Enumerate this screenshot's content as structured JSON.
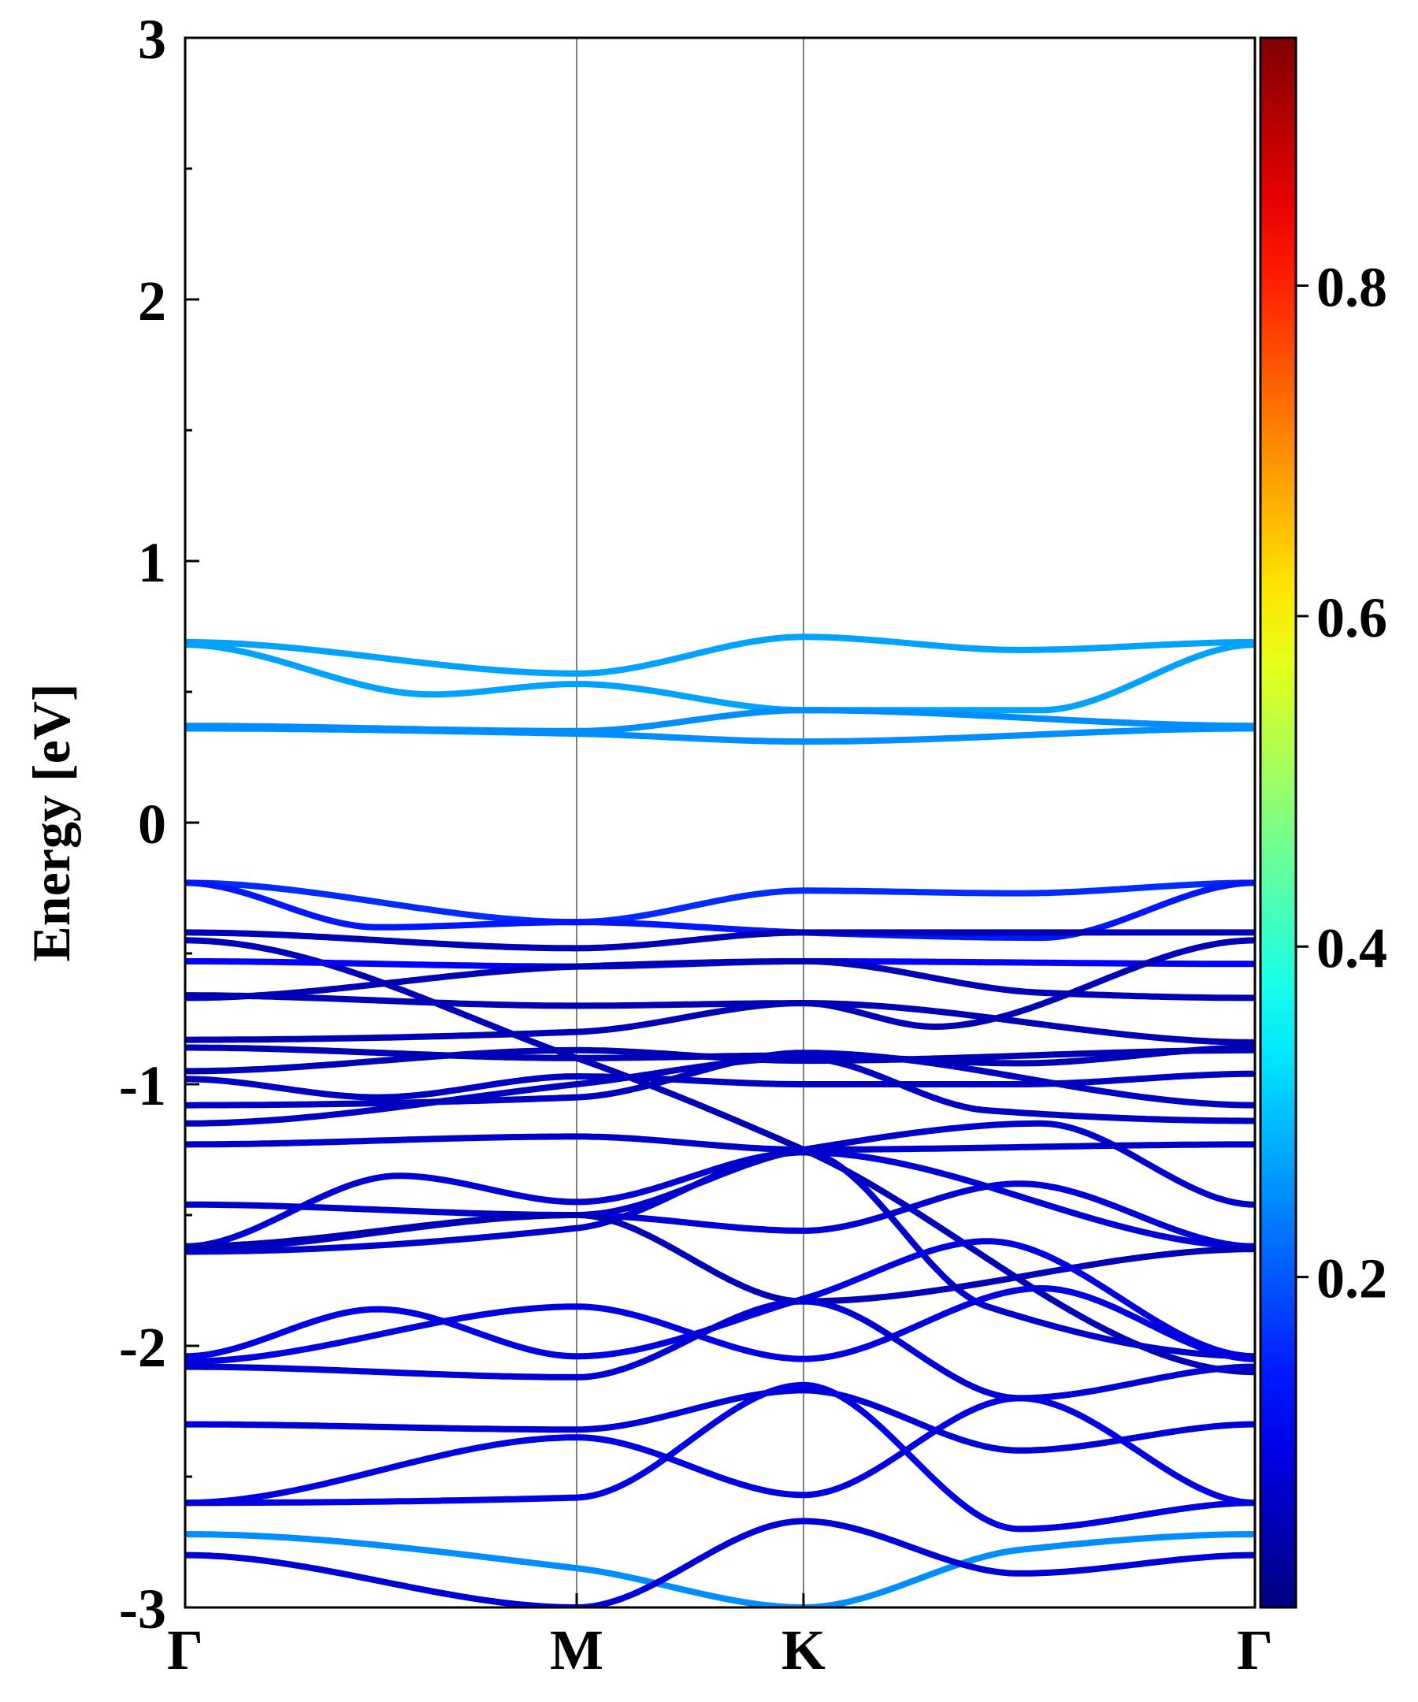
{
  "chart_data": {
    "type": "line",
    "title": "",
    "ylabel": "Energy [eV]",
    "xlabel": "",
    "ylim": [
      -3,
      3
    ],
    "yticks": [
      "3",
      "2",
      "1",
      "0",
      "-1",
      "-2",
      "-3"
    ],
    "ytick_values": [
      3,
      2,
      1,
      0,
      -1,
      -2,
      -3
    ],
    "x_range": [
      0,
      1
    ],
    "kpath": {
      "labels": [
        "Γ",
        "M",
        "K",
        "Γ"
      ],
      "positions": [
        0,
        0.366,
        0.578,
        1
      ]
    },
    "colorbar": {
      "colormap": "jet",
      "range": [
        0,
        0.95
      ],
      "tick_labels": [
        "0.2",
        "0.4",
        "0.6",
        "0.8"
      ],
      "tick_values": [
        0.2,
        0.4,
        0.6,
        0.8
      ]
    },
    "grid": false,
    "bands": [
      {
        "weight": 0.27,
        "x": [
          0,
          0.366,
          0.578,
          0.78,
          1
        ],
        "y": [
          0.69,
          0.57,
          0.71,
          0.66,
          0.69
        ]
      },
      {
        "weight": 0.27,
        "x": [
          0,
          0.23,
          0.366,
          0.578,
          0.8,
          1
        ],
        "y": [
          0.68,
          0.49,
          0.53,
          0.43,
          0.43,
          0.68
        ]
      },
      {
        "weight": 0.25,
        "x": [
          0,
          0.366,
          0.578,
          1
        ],
        "y": [
          0.37,
          0.35,
          0.43,
          0.37
        ]
      },
      {
        "weight": 0.25,
        "x": [
          0,
          0.366,
          0.578,
          1
        ],
        "y": [
          0.36,
          0.34,
          0.31,
          0.36
        ]
      },
      {
        "weight": 0.16,
        "x": [
          0,
          0.366,
          0.578,
          0.78,
          1
        ],
        "y": [
          -0.23,
          -0.38,
          -0.26,
          -0.27,
          -0.23
        ]
      },
      {
        "weight": 0.14,
        "x": [
          0,
          0.18,
          0.366,
          0.578,
          0.8,
          1
        ],
        "y": [
          -0.23,
          -0.4,
          -0.38,
          -0.42,
          -0.44,
          -0.23
        ]
      },
      {
        "weight": 0.05,
        "x": [
          0,
          0.366,
          0.578,
          1
        ],
        "y": [
          -0.42,
          -0.48,
          -0.42,
          -0.42
        ]
      },
      {
        "weight": 0.05,
        "x": [
          0,
          0.366,
          0.578,
          1
        ],
        "y": [
          -0.45,
          -0.9,
          -1.25,
          -2.1
        ]
      },
      {
        "weight": 0.12,
        "x": [
          0,
          0.366,
          0.578,
          1
        ],
        "y": [
          -0.53,
          -0.55,
          -0.53,
          -0.54
        ]
      },
      {
        "weight": 0.05,
        "x": [
          0,
          0.366,
          0.578,
          0.8,
          1
        ],
        "y": [
          -0.67,
          -0.55,
          -0.53,
          -0.65,
          -0.67
        ]
      },
      {
        "weight": 0.05,
        "x": [
          0,
          0.366,
          0.578,
          0.7,
          1
        ],
        "y": [
          -0.66,
          -0.7,
          -0.69,
          -0.78,
          -0.45
        ]
      },
      {
        "weight": 0.05,
        "x": [
          0,
          0.366,
          0.578,
          1
        ],
        "y": [
          -0.83,
          -0.8,
          -0.69,
          -0.84
        ]
      },
      {
        "weight": 0.05,
        "x": [
          0,
          0.366,
          0.578,
          0.78,
          1
        ],
        "y": [
          -0.86,
          -0.9,
          -0.89,
          -0.92,
          -0.86
        ]
      },
      {
        "weight": 0.05,
        "x": [
          0,
          0.366,
          0.578,
          1
        ],
        "y": [
          -0.95,
          -0.87,
          -0.91,
          -0.87
        ]
      },
      {
        "weight": 0.06,
        "x": [
          0,
          0.18,
          0.366,
          0.578,
          0.78,
          1
        ],
        "y": [
          -0.98,
          -1.05,
          -0.97,
          -1.0,
          -1.0,
          -0.96
        ]
      },
      {
        "weight": 0.06,
        "x": [
          0,
          0.366,
          0.578,
          1
        ],
        "y": [
          -1.08,
          -1.05,
          -0.88,
          -1.08
        ]
      },
      {
        "weight": 0.06,
        "x": [
          0,
          0.366,
          0.578,
          0.75,
          1
        ],
        "y": [
          -1.15,
          -1.0,
          -0.9,
          -1.1,
          -1.14
        ]
      },
      {
        "weight": 0.07,
        "x": [
          0,
          0.366,
          0.578,
          1
        ],
        "y": [
          -1.23,
          -1.2,
          -1.25,
          -1.23
        ]
      },
      {
        "weight": 0.07,
        "x": [
          0,
          0.366,
          0.578,
          0.8,
          1
        ],
        "y": [
          -1.46,
          -1.5,
          -1.25,
          -1.15,
          -1.46
        ]
      },
      {
        "weight": 0.08,
        "x": [
          0,
          0.2,
          0.366,
          0.578,
          1
        ],
        "y": [
          -1.62,
          -1.35,
          -1.45,
          -1.26,
          -1.62
        ]
      },
      {
        "weight": 0.08,
        "x": [
          0,
          0.366,
          0.578,
          0.78,
          1
        ],
        "y": [
          -1.63,
          -1.5,
          -1.56,
          -1.38,
          -1.62
        ]
      },
      {
        "weight": 0.07,
        "x": [
          0,
          0.366,
          0.578,
          0.75,
          1
        ],
        "y": [
          -1.64,
          -1.55,
          -1.26,
          -1.85,
          -2.04
        ]
      },
      {
        "weight": 0.05,
        "x": [
          0,
          0.366,
          0.578,
          1
        ],
        "y": [
          -1.62,
          -1.5,
          -1.83,
          -1.63
        ]
      },
      {
        "weight": 0.09,
        "x": [
          0,
          0.18,
          0.366,
          0.578,
          0.75,
          1
        ],
        "y": [
          -2.04,
          -1.86,
          -2.04,
          -1.82,
          -1.6,
          -2.04
        ]
      },
      {
        "weight": 0.09,
        "x": [
          0,
          0.366,
          0.578,
          0.8,
          1
        ],
        "y": [
          -2.06,
          -1.85,
          -2.05,
          -1.78,
          -2.05
        ]
      },
      {
        "weight": 0.08,
        "x": [
          0,
          0.366,
          0.578,
          0.78,
          1
        ],
        "y": [
          -2.08,
          -2.12,
          -1.83,
          -2.2,
          -2.08
        ]
      },
      {
        "weight": 0.08,
        "x": [
          0,
          0.366,
          0.578,
          0.78,
          1
        ],
        "y": [
          -2.3,
          -2.32,
          -2.17,
          -2.4,
          -2.3
        ]
      },
      {
        "weight": 0.09,
        "x": [
          0,
          0.366,
          0.578,
          0.78,
          1
        ],
        "y": [
          -2.6,
          -2.35,
          -2.57,
          -2.2,
          -2.6
        ]
      },
      {
        "weight": 0.09,
        "x": [
          0,
          0.366,
          0.578,
          0.78,
          1
        ],
        "y": [
          -2.6,
          -2.58,
          -2.15,
          -2.7,
          -2.6
        ]
      },
      {
        "weight": 0.25,
        "x": [
          0,
          0.366,
          0.578,
          0.78,
          1
        ],
        "y": [
          -2.72,
          -2.85,
          -3.0,
          -2.78,
          -2.72
        ]
      },
      {
        "weight": 0.08,
        "x": [
          0,
          0.366,
          0.578,
          0.78,
          1
        ],
        "y": [
          -2.8,
          -3.0,
          -2.67,
          -2.87,
          -2.8
        ]
      }
    ]
  }
}
